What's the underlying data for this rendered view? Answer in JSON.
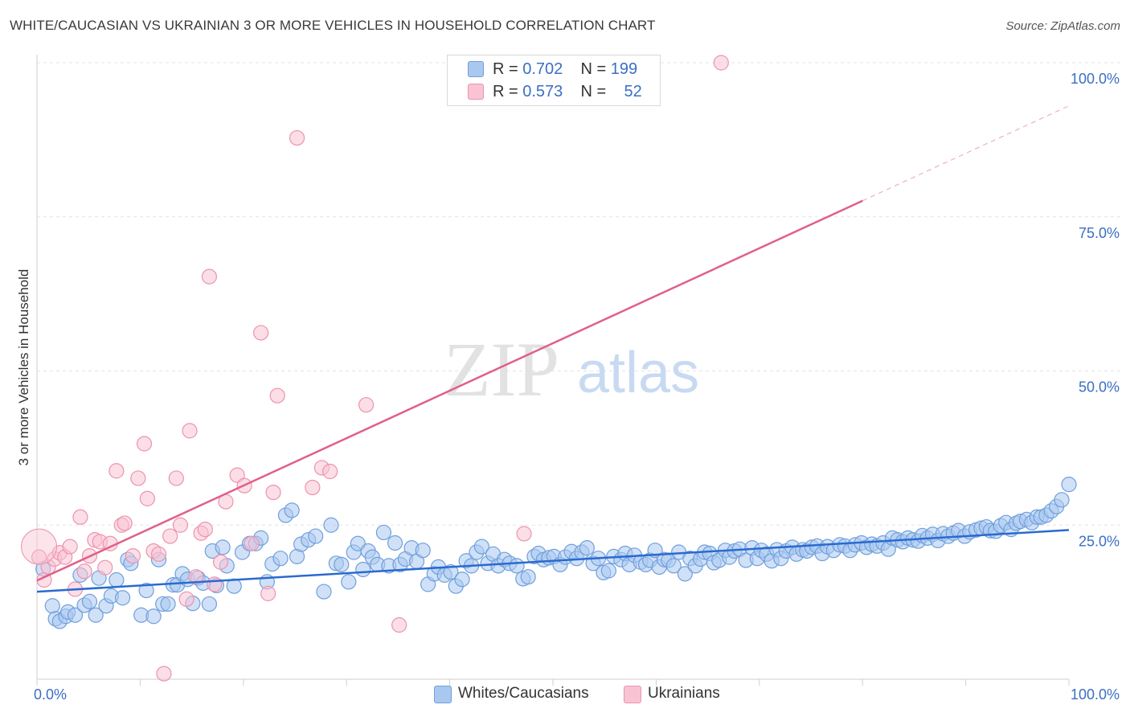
{
  "title": "WHITE/CAUCASIAN VS UKRAINIAN 3 OR MORE VEHICLES IN HOUSEHOLD CORRELATION CHART",
  "source": "Source: ZipAtlas.com",
  "watermark": {
    "zip": "ZIP",
    "atlas": "atlas"
  },
  "legend": {
    "rows": [
      {
        "r_label": "R =",
        "r_value": "0.702",
        "n_label": "N =",
        "n_value": "199",
        "color": "#a9c8f0",
        "stroke": "#6f9fdc"
      },
      {
        "r_label": "R =",
        "r_value": "0.573",
        "n_label": "N =",
        "n_value": "52",
        "color": "#f9c3d3",
        "stroke": "#ec93ad"
      }
    ]
  },
  "bottom_legend": [
    {
      "label": "Whites/Caucasians",
      "color": "#a9c8f0",
      "stroke": "#6f9fdc"
    },
    {
      "label": "Ukrainians",
      "color": "#f9c3d3",
      "stroke": "#ec93ad"
    }
  ],
  "chart_data": {
    "type": "scatter",
    "ylabel": "3 or more Vehicles in Household",
    "xlabel": "",
    "xlim": [
      0,
      100
    ],
    "ylim": [
      0,
      100
    ],
    "x_tick_labels": [
      {
        "value": 0,
        "label": "0.0%"
      },
      {
        "value": 100,
        "label": "100.0%"
      }
    ],
    "y_tick_labels": [
      {
        "value": 25,
        "label": "25.0%"
      },
      {
        "value": 50,
        "label": "50.0%"
      },
      {
        "value": 75,
        "label": "75.0%"
      },
      {
        "value": 100,
        "label": "100.0%"
      }
    ],
    "grid": true,
    "series": [
      {
        "name": "Whites/Caucasians",
        "color": "#a9c8f0",
        "stroke": "#6f9fdc",
        "trend": {
          "x0": 0,
          "y0": 14.2,
          "x1": 100,
          "y1": 24.2,
          "color": "#2a6ad0"
        },
        "points": [
          [
            0.6,
            17.9
          ],
          [
            1.5,
            11.9
          ],
          [
            1.8,
            9.8
          ],
          [
            2.2,
            9.4
          ],
          [
            2.8,
            10.2
          ],
          [
            3.0,
            10.9
          ],
          [
            3.7,
            10.4
          ],
          [
            4.2,
            16.9
          ],
          [
            4.6,
            12.0
          ],
          [
            5.1,
            12.6
          ],
          [
            5.7,
            10.4
          ],
          [
            6.0,
            16.4
          ],
          [
            6.7,
            11.9
          ],
          [
            7.2,
            13.5
          ],
          [
            7.7,
            16.1
          ],
          [
            8.3,
            13.2
          ],
          [
            8.8,
            19.4
          ],
          [
            9.1,
            18.8
          ],
          [
            10.1,
            10.4
          ],
          [
            10.6,
            14.4
          ],
          [
            11.3,
            10.2
          ],
          [
            11.8,
            19.4
          ],
          [
            12.2,
            12.2
          ],
          [
            12.7,
            12.2
          ],
          [
            13.2,
            15.3
          ],
          [
            13.6,
            15.3
          ],
          [
            14.1,
            17.1
          ],
          [
            14.6,
            16.2
          ],
          [
            15.1,
            12.3
          ],
          [
            15.6,
            16.4
          ],
          [
            16.1,
            15.6
          ],
          [
            16.7,
            12.2
          ],
          [
            17.0,
            20.8
          ],
          [
            17.4,
            15.2
          ],
          [
            18.0,
            21.4
          ],
          [
            18.4,
            18.4
          ],
          [
            19.1,
            15.1
          ],
          [
            19.9,
            20.6
          ],
          [
            20.6,
            22.0
          ],
          [
            21.2,
            22.0
          ],
          [
            21.7,
            22.9
          ],
          [
            22.3,
            15.8
          ],
          [
            22.8,
            18.7
          ],
          [
            23.6,
            19.6
          ],
          [
            24.1,
            26.6
          ],
          [
            24.7,
            27.4
          ],
          [
            25.2,
            19.9
          ],
          [
            25.6,
            21.9
          ],
          [
            26.3,
            22.6
          ],
          [
            27.0,
            23.2
          ],
          [
            27.8,
            14.2
          ],
          [
            28.5,
            25.0
          ],
          [
            29.0,
            18.8
          ],
          [
            29.5,
            18.6
          ],
          [
            30.2,
            15.8
          ],
          [
            30.7,
            20.6
          ],
          [
            31.1,
            22.0
          ],
          [
            31.6,
            17.8
          ],
          [
            32.1,
            20.8
          ],
          [
            32.5,
            19.8
          ],
          [
            33.0,
            18.6
          ],
          [
            33.6,
            23.8
          ],
          [
            34.1,
            18.4
          ],
          [
            34.7,
            22.1
          ],
          [
            35.2,
            18.6
          ],
          [
            35.7,
            19.5
          ],
          [
            36.3,
            21.3
          ],
          [
            36.8,
            19.1
          ],
          [
            37.4,
            20.9
          ],
          [
            37.9,
            15.4
          ],
          [
            38.5,
            17.1
          ],
          [
            38.9,
            18.2
          ],
          [
            39.5,
            16.9
          ],
          [
            40.1,
            17.4
          ],
          [
            40.6,
            15.1
          ],
          [
            41.2,
            16.2
          ],
          [
            41.6,
            19.2
          ],
          [
            42.1,
            18.4
          ],
          [
            42.6,
            20.6
          ],
          [
            43.1,
            21.5
          ],
          [
            43.7,
            18.8
          ],
          [
            44.2,
            20.3
          ],
          [
            44.7,
            18.4
          ],
          [
            45.3,
            19.4
          ],
          [
            45.8,
            18.8
          ],
          [
            46.5,
            18.4
          ],
          [
            47.1,
            16.3
          ],
          [
            47.6,
            16.6
          ],
          [
            48.2,
            19.9
          ],
          [
            48.6,
            20.4
          ],
          [
            49.1,
            19.4
          ],
          [
            49.6,
            19.7
          ],
          [
            50.1,
            19.9
          ],
          [
            50.7,
            18.6
          ],
          [
            51.2,
            19.8
          ],
          [
            51.8,
            20.7
          ],
          [
            52.3,
            19.6
          ],
          [
            52.8,
            20.6
          ],
          [
            53.3,
            21.3
          ],
          [
            53.9,
            18.8
          ],
          [
            54.4,
            19.6
          ],
          [
            54.9,
            17.3
          ],
          [
            55.4,
            17.6
          ],
          [
            55.9,
            19.9
          ],
          [
            56.6,
            19.4
          ],
          [
            57.0,
            20.4
          ],
          [
            57.4,
            18.6
          ],
          [
            57.9,
            20.1
          ],
          [
            58.5,
            19.0
          ],
          [
            59.0,
            18.6
          ],
          [
            59.4,
            19.3
          ],
          [
            59.9,
            20.9
          ],
          [
            60.3,
            18.2
          ],
          [
            60.8,
            19.4
          ],
          [
            61.2,
            19.3
          ],
          [
            61.7,
            18.4
          ],
          [
            62.2,
            20.6
          ],
          [
            62.8,
            17.1
          ],
          [
            63.3,
            19.6
          ],
          [
            63.8,
            18.4
          ],
          [
            64.3,
            19.5
          ],
          [
            64.7,
            20.6
          ],
          [
            65.2,
            20.4
          ],
          [
            65.6,
            18.9
          ],
          [
            66.1,
            19.3
          ],
          [
            66.7,
            20.9
          ],
          [
            67.1,
            19.8
          ],
          [
            67.6,
            20.8
          ],
          [
            68.1,
            21.1
          ],
          [
            68.7,
            19.3
          ],
          [
            69.3,
            21.3
          ],
          [
            69.8,
            19.6
          ],
          [
            70.2,
            20.9
          ],
          [
            70.7,
            20.3
          ],
          [
            71.2,
            19.2
          ],
          [
            71.7,
            21.0
          ],
          [
            72.1,
            19.6
          ],
          [
            72.6,
            20.8
          ],
          [
            73.2,
            21.4
          ],
          [
            73.6,
            20.3
          ],
          [
            74.2,
            21.0
          ],
          [
            74.6,
            20.8
          ],
          [
            75.1,
            21.4
          ],
          [
            75.6,
            21.6
          ],
          [
            76.1,
            20.4
          ],
          [
            76.6,
            21.5
          ],
          [
            77.2,
            20.9
          ],
          [
            77.8,
            21.8
          ],
          [
            78.3,
            21.6
          ],
          [
            78.8,
            20.9
          ],
          [
            79.3,
            21.8
          ],
          [
            79.9,
            22.1
          ],
          [
            80.4,
            21.4
          ],
          [
            80.9,
            21.9
          ],
          [
            81.4,
            21.6
          ],
          [
            82.0,
            22.1
          ],
          [
            82.5,
            21.1
          ],
          [
            82.9,
            22.9
          ],
          [
            83.4,
            22.6
          ],
          [
            83.9,
            22.3
          ],
          [
            84.4,
            22.9
          ],
          [
            84.9,
            22.6
          ],
          [
            85.4,
            22.4
          ],
          [
            85.8,
            23.3
          ],
          [
            86.3,
            22.9
          ],
          [
            86.8,
            23.5
          ],
          [
            87.3,
            22.5
          ],
          [
            87.8,
            23.6
          ],
          [
            88.3,
            23.2
          ],
          [
            88.8,
            23.7
          ],
          [
            89.3,
            24.1
          ],
          [
            89.9,
            23.2
          ],
          [
            90.4,
            23.9
          ],
          [
            91.0,
            24.2
          ],
          [
            91.5,
            24.5
          ],
          [
            92.0,
            24.7
          ],
          [
            92.4,
            24.1
          ],
          [
            92.9,
            24.0
          ],
          [
            93.4,
            24.9
          ],
          [
            93.9,
            25.4
          ],
          [
            94.4,
            24.3
          ],
          [
            94.9,
            25.3
          ],
          [
            95.3,
            25.6
          ],
          [
            95.9,
            25.9
          ],
          [
            96.4,
            25.4
          ],
          [
            96.9,
            26.3
          ],
          [
            97.3,
            26.3
          ],
          [
            97.8,
            26.6
          ],
          [
            98.3,
            27.3
          ],
          [
            98.8,
            28.0
          ],
          [
            99.3,
            29.1
          ],
          [
            100.0,
            31.6
          ]
        ]
      },
      {
        "name": "Ukrainians",
        "color": "#f9c3d3",
        "stroke": "#ec93ad",
        "trend": {
          "x0": 0,
          "y0": 16.0,
          "x1": 80,
          "y1": 77.6,
          "dash_x1": 100,
          "dash_y1": 93.0,
          "color": "#e0608a"
        },
        "points": [
          [
            0.2,
            19.8
          ],
          [
            0.7,
            16.1
          ],
          [
            1.1,
            18.2
          ],
          [
            1.7,
            19.5
          ],
          [
            2.2,
            20.5
          ],
          [
            2.7,
            19.8
          ],
          [
            3.2,
            21.5
          ],
          [
            3.7,
            14.6
          ],
          [
            4.2,
            26.3
          ],
          [
            4.6,
            17.5
          ],
          [
            5.1,
            20.0
          ],
          [
            5.6,
            22.6
          ],
          [
            6.1,
            22.3
          ],
          [
            6.6,
            18.1
          ],
          [
            7.1,
            22.0
          ],
          [
            7.7,
            33.8
          ],
          [
            8.2,
            25.0
          ],
          [
            8.5,
            25.3
          ],
          [
            9.3,
            20.0
          ],
          [
            9.8,
            32.6
          ],
          [
            10.4,
            38.2
          ],
          [
            10.7,
            29.3
          ],
          [
            11.3,
            20.8
          ],
          [
            11.8,
            20.3
          ],
          [
            12.3,
            0.9
          ],
          [
            12.9,
            23.2
          ],
          [
            13.5,
            32.6
          ],
          [
            13.9,
            25.0
          ],
          [
            14.5,
            13.0
          ],
          [
            14.8,
            40.3
          ],
          [
            15.4,
            16.6
          ],
          [
            15.9,
            23.7
          ],
          [
            16.3,
            24.3
          ],
          [
            16.7,
            65.3
          ],
          [
            17.2,
            15.4
          ],
          [
            17.8,
            19.0
          ],
          [
            18.3,
            28.8
          ],
          [
            19.4,
            33.1
          ],
          [
            20.1,
            31.4
          ],
          [
            20.8,
            22.0
          ],
          [
            21.7,
            56.2
          ],
          [
            22.4,
            13.9
          ],
          [
            22.9,
            30.3
          ],
          [
            23.3,
            46.0
          ],
          [
            25.2,
            87.8
          ],
          [
            26.7,
            31.1
          ],
          [
            27.6,
            34.3
          ],
          [
            28.4,
            33.7
          ],
          [
            31.9,
            44.5
          ],
          [
            35.1,
            8.8
          ],
          [
            47.2,
            23.6
          ],
          [
            66.3,
            100.0
          ]
        ]
      }
    ]
  }
}
